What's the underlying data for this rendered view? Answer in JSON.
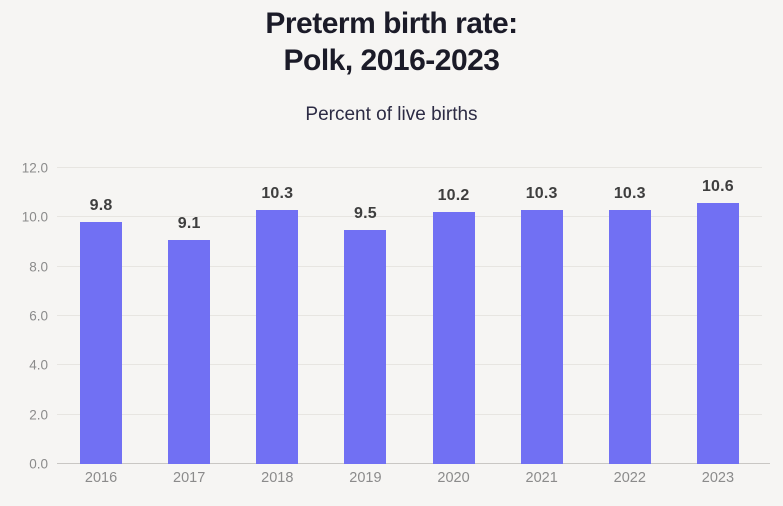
{
  "header": {
    "title_line1": "Preterm birth rate:",
    "title_line2": "Polk, 2016-2023",
    "subtitle": "Percent of live births"
  },
  "chart_data": {
    "type": "bar",
    "title": "Preterm birth rate: Polk, 2016-2023",
    "subtitle": "Percent of live births",
    "categories": [
      "2016",
      "2017",
      "2018",
      "2019",
      "2020",
      "2021",
      "2022",
      "2023"
    ],
    "values": [
      9.8,
      9.1,
      10.3,
      9.5,
      10.2,
      10.3,
      10.3,
      10.6
    ],
    "xlabel": "",
    "ylabel": "",
    "ylim": [
      0,
      12
    ],
    "ytick_step": 2,
    "ytick_labels": [
      "0.0",
      "2.0",
      "4.0",
      "6.0",
      "8.0",
      "10.0",
      "12.0"
    ],
    "grid": true,
    "legend": false,
    "value_labels_shown": true
  },
  "colors": {
    "background": "#f6f5f3",
    "bar": "#7170f3",
    "title_text": "#1b1b28",
    "subtitle_text": "#2c2b44",
    "axis_text": "#8b8b8b",
    "value_label_text": "#3e3e3e",
    "gridline": "#e7e5e1",
    "baseline": "#c9c7c4"
  }
}
